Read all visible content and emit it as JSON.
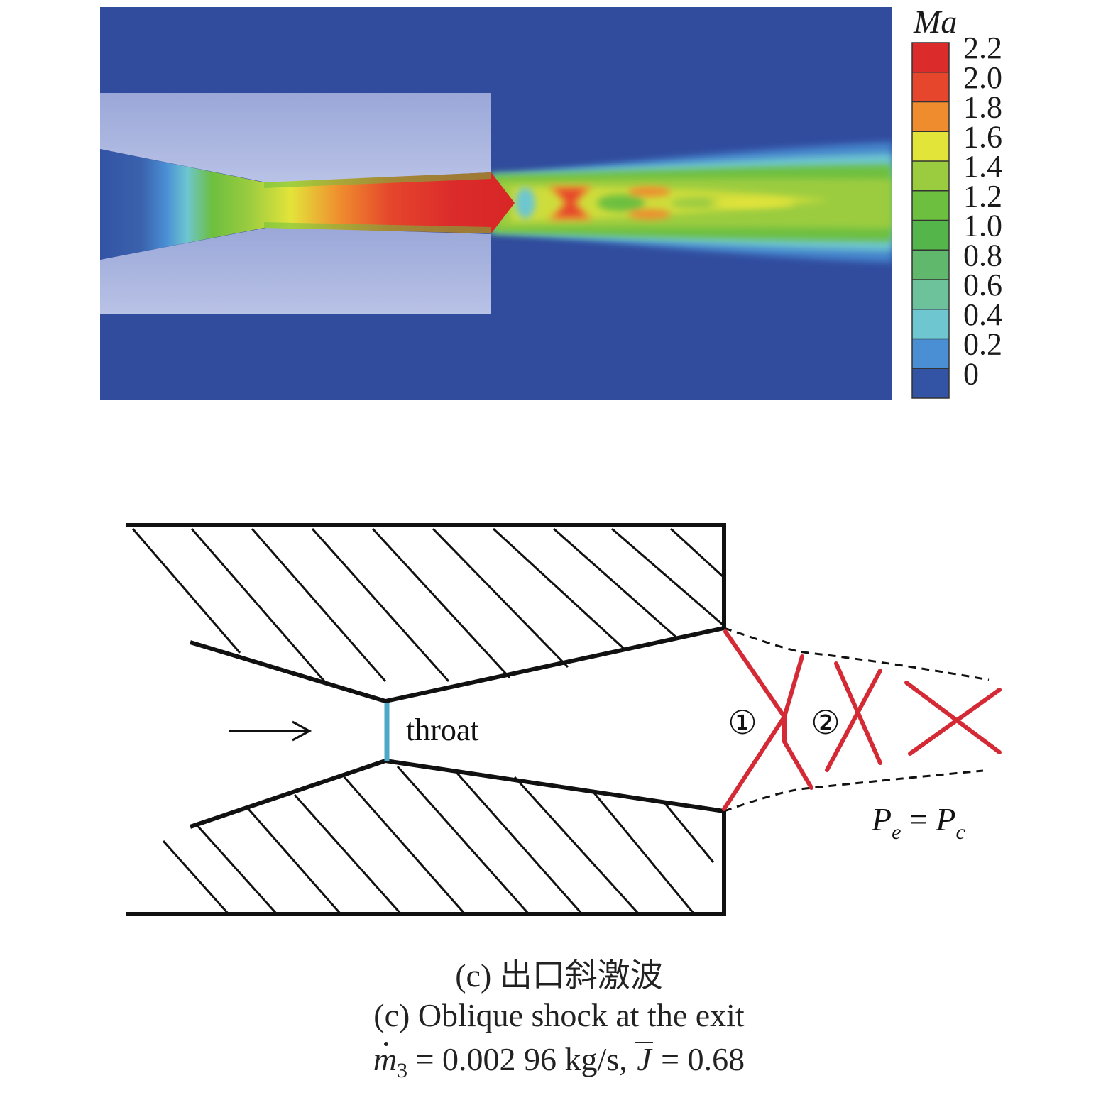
{
  "contour": {
    "quantity_label": "Ma",
    "colorbar": {
      "ticks": [
        "2.2",
        "2.0",
        "1.8",
        "1.6",
        "1.4",
        "1.2",
        "1.0",
        "0.8",
        "0.6",
        "0.4",
        "0.2",
        "0"
      ],
      "colors": [
        "#dc2b2b",
        "#e5462c",
        "#ef8c2e",
        "#e3e43a",
        "#9bcc3f",
        "#6dbf3f",
        "#54b54a",
        "#5fb86b",
        "#6dc29b",
        "#6dc6d0",
        "#4a8fd4",
        "#3353a4"
      ]
    },
    "colors": {
      "background": "#314c9d",
      "nozzle_wall": "#a8b3dc"
    }
  },
  "schematic": {
    "throat_label": "throat",
    "shock_cell_labels": [
      "①",
      "②"
    ],
    "pressure_label": {
      "P1": "P",
      "sub1": "e",
      "eq": " = ",
      "P2": "P",
      "sub2": "c"
    },
    "colors": {
      "shock": "#d42a35",
      "throat": "#4ea7c4",
      "wall": "#111111"
    }
  },
  "caption": {
    "cn": "(c) 出口斜激波",
    "en": "(c) Oblique shock at the exit",
    "eq": {
      "m": "m",
      "sub": "3",
      "mass_flow": " = 0.002 96 kg/s,  ",
      "J": "J",
      "J_value": " = 0.68"
    }
  }
}
